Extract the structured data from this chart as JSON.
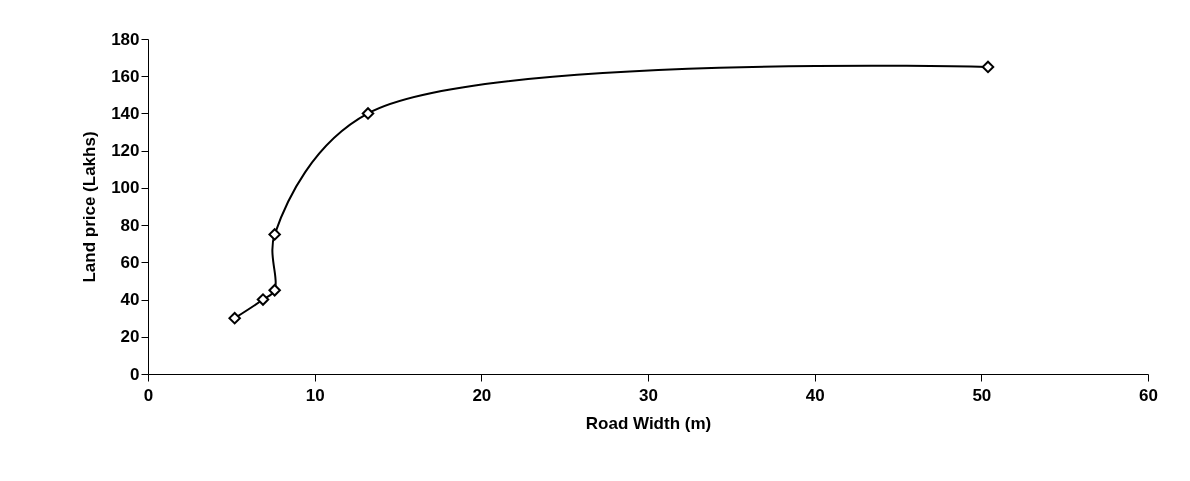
{
  "chart_data": {
    "type": "line",
    "xlabel": "Road Width (m)",
    "ylabel": "Land price (Lakhs)",
    "x": [
      5.2,
      6.9,
      7.6,
      7.6,
      13.2,
      50.4
    ],
    "series": [
      {
        "color": "#000000",
        "values": [
          30,
          40,
          45,
          75,
          140,
          165
        ]
      }
    ],
    "xlim": [
      0,
      60
    ],
    "xticks": [
      0,
      10,
      20,
      30,
      40,
      50,
      60
    ],
    "ylim": [
      0,
      180
    ],
    "yticks": [
      0,
      20,
      40,
      60,
      80,
      100,
      120,
      140,
      160,
      180
    ],
    "grid": false,
    "legend": false,
    "marker": "diamond",
    "line_style": "solid"
  }
}
